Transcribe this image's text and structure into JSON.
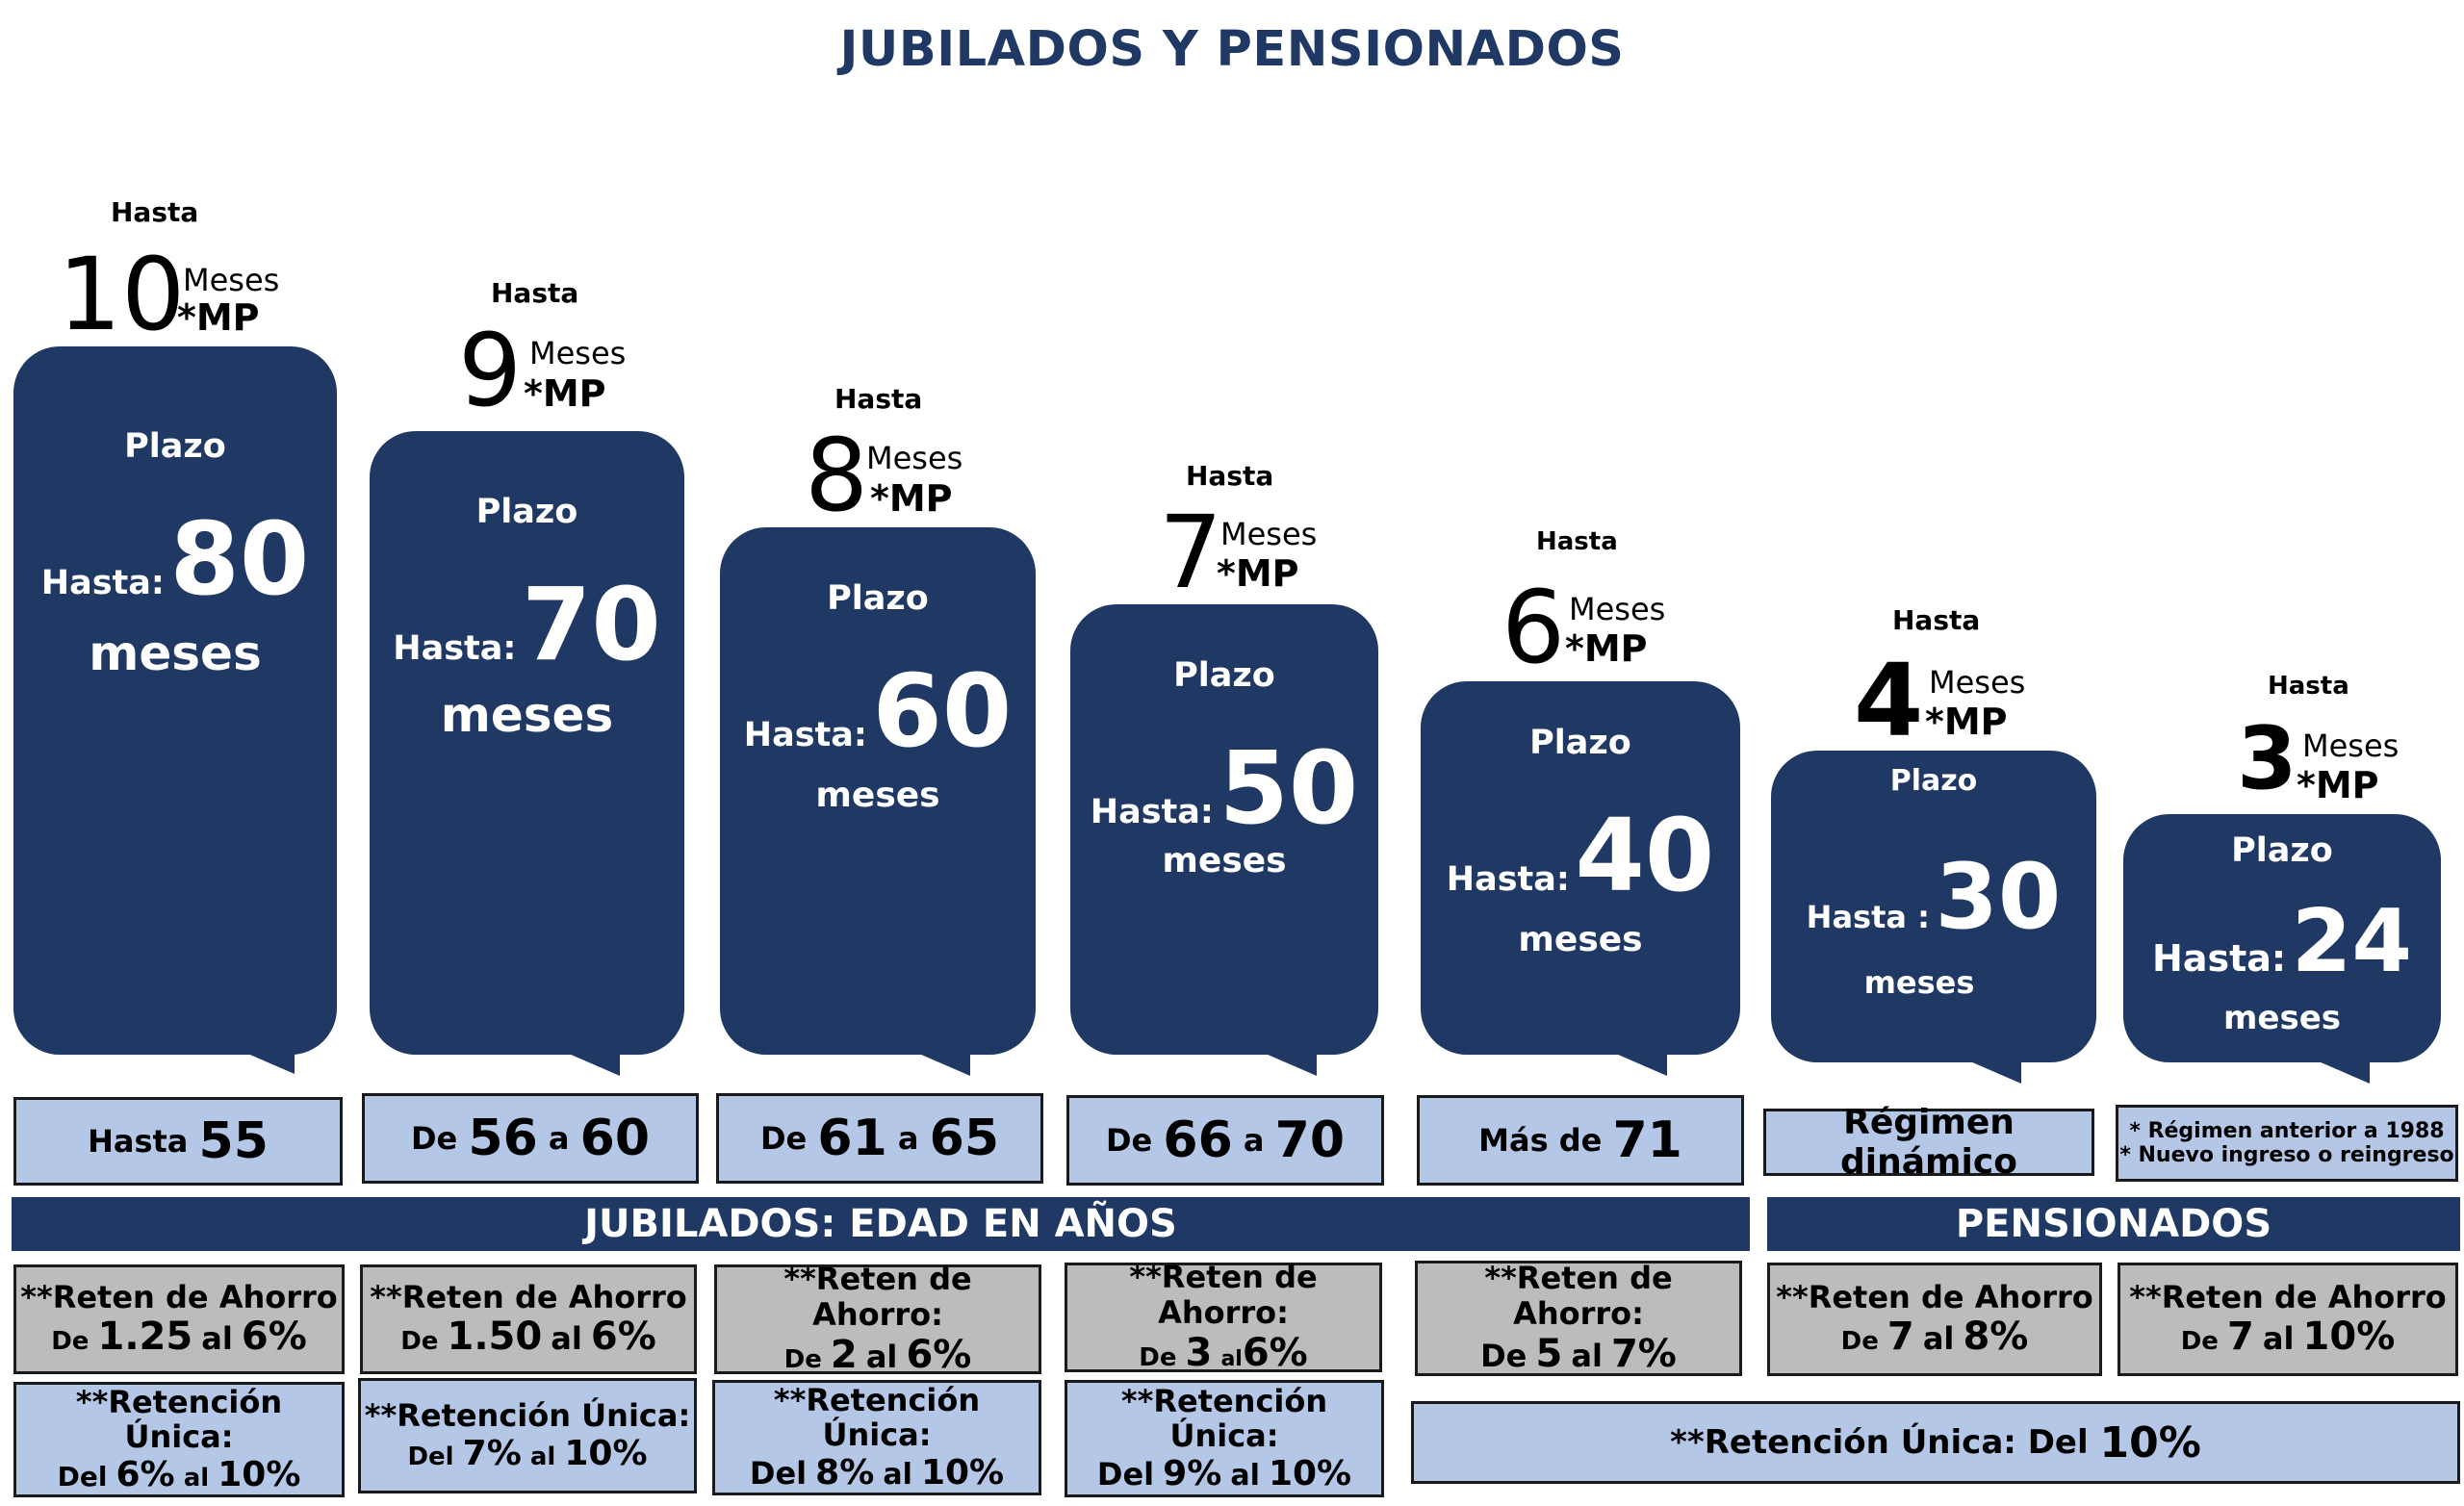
{
  "title": "JUBILADOS Y PENSIONADOS",
  "colors": {
    "navy": "#1f3864",
    "light_blue": "#b4c7e7",
    "gray": "#bcbcbc"
  },
  "columns": [
    {
      "hasta": "Hasta",
      "num": "10",
      "meses": "Meses",
      "mp": "*MP",
      "plazo": "Plazo",
      "hasta_label": "Hasta:",
      "plazo_num": "80",
      "plazo_meses": "meses"
    },
    {
      "hasta": "Hasta",
      "num": "9",
      "meses": "Meses",
      "mp": "*MP",
      "plazo": "Plazo",
      "hasta_label": "Hasta:",
      "plazo_num": "70",
      "plazo_meses": "meses"
    },
    {
      "hasta": "Hasta",
      "num": "8",
      "meses": "Meses",
      "mp": "*MP",
      "plazo": "Plazo",
      "hasta_label": "Hasta:",
      "plazo_num": "60",
      "plazo_meses": "meses"
    },
    {
      "hasta": "Hasta",
      "num": "7",
      "meses": "Meses",
      "mp": "*MP",
      "plazo": "Plazo",
      "hasta_label": "Hasta:",
      "plazo_num": "50",
      "plazo_meses": "meses"
    },
    {
      "hasta": "Hasta",
      "num": "6",
      "meses": "Meses",
      "mp": "*MP",
      "plazo": "Plazo",
      "hasta_label": "Hasta:",
      "plazo_num": "40",
      "plazo_meses": "meses"
    },
    {
      "hasta": "Hasta",
      "num": "4",
      "meses": "Meses",
      "mp": "*MP",
      "plazo": "Plazo",
      "hasta_label": "Hasta :",
      "plazo_num": "30",
      "plazo_meses": "meses"
    },
    {
      "hasta": "Hasta",
      "num": "3",
      "meses": "Meses",
      "mp": "*MP",
      "plazo": "Plazo",
      "hasta_label": "Hasta:",
      "plazo_num": "24",
      "plazo_meses": "meses"
    }
  ],
  "ages": [
    {
      "pre": "Hasta",
      "a": "55"
    },
    {
      "pre": "De",
      "a": "56",
      "mid": "a",
      "b": "60"
    },
    {
      "pre": "De",
      "a": "61",
      "mid": "a",
      "b": "65"
    },
    {
      "pre": "De",
      "a": "66",
      "mid": "a",
      "b": "70"
    },
    {
      "pre": "Más de",
      "a": "71"
    },
    {
      "text": "Régimen dinámico"
    },
    {
      "line1": "* Régimen anterior a 1988",
      "line2": "* Nuevo ingreso o reingreso"
    }
  ],
  "bands": {
    "jubilados": "JUBILADOS: EDAD EN AÑOS",
    "pensionados": "PENSIONADOS"
  },
  "reten": [
    {
      "label": "**Reten de Ahorro",
      "de": "De",
      "a": "1.25",
      "al": "al",
      "b": "6%"
    },
    {
      "label": "**Reten de Ahorro",
      "de": "De",
      "a": "1.50",
      "al": "al",
      "b": "6%"
    },
    {
      "label": "**Reten de Ahorro:",
      "de": "De",
      "a": "2",
      "al": "al",
      "b": "6%"
    },
    {
      "label": "**Reten de Ahorro:",
      "de": "De",
      "a": "3",
      "al": "al",
      "b": "6%"
    },
    {
      "label": "**Reten de Ahorro:",
      "de": "De",
      "a": "5",
      "al": "al",
      "b": "7%"
    },
    {
      "label": "**Reten de Ahorro",
      "de": "De",
      "a": "7",
      "al": "al",
      "b": "8%"
    },
    {
      "label": "**Reten de Ahorro",
      "de": "De",
      "a": "7",
      "al": "al",
      "b": "10%"
    }
  ],
  "retencion": [
    {
      "label": "**Retención Única:",
      "de": "Del",
      "a": "6%",
      "al": "al",
      "b": "10%"
    },
    {
      "label": "**Retención Única:",
      "de": "Del",
      "a": "7%",
      "al": "al",
      "b": "10%"
    },
    {
      "label": "**Retención Única:",
      "de": "Del",
      "a": "8%",
      "al": "al",
      "b": "10%"
    },
    {
      "label": "**Retención Única:",
      "de": "Del",
      "a": "9%",
      "al": "al",
      "b": "10%"
    },
    {
      "label": "**Retención Única: Del",
      "b": "10%"
    }
  ]
}
